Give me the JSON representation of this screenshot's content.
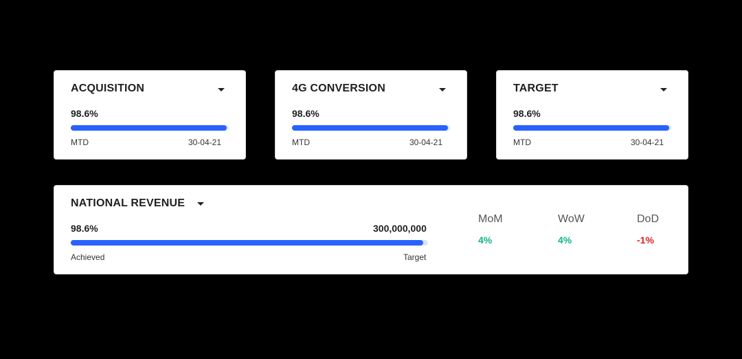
{
  "cards": [
    {
      "title": "ACQUISITION",
      "percent": "98.6%",
      "progress": 0.986,
      "left_label": "MTD",
      "right_label": "30-04-21"
    },
    {
      "title": "4G CONVERSION",
      "percent": "98.6%",
      "progress": 0.986,
      "left_label": "MTD",
      "right_label": "30-04-21"
    },
    {
      "title": "TARGET",
      "percent": "98.6%",
      "progress": 0.986,
      "left_label": "MTD",
      "right_label": "30-04-21"
    }
  ],
  "national": {
    "title": "NATIONAL REVENUE",
    "percent": "98.6%",
    "progress": 0.986,
    "target_value": "300,000,000",
    "left_label": "Achieved",
    "right_label": "Target",
    "metrics": [
      {
        "name": "MoM",
        "value": "4%",
        "trend": "positive"
      },
      {
        "name": "WoW",
        "value": "4%",
        "trend": "positive"
      },
      {
        "name": "DoD",
        "value": "-1%",
        "trend": "negative"
      }
    ]
  },
  "colors": {
    "bar_fill": "#2962ff",
    "bar_track": "#dbe5ff",
    "positive": "#15b38a",
    "negative": "#e02424"
  },
  "icons": {
    "dropdown": "caret-down-icon"
  }
}
